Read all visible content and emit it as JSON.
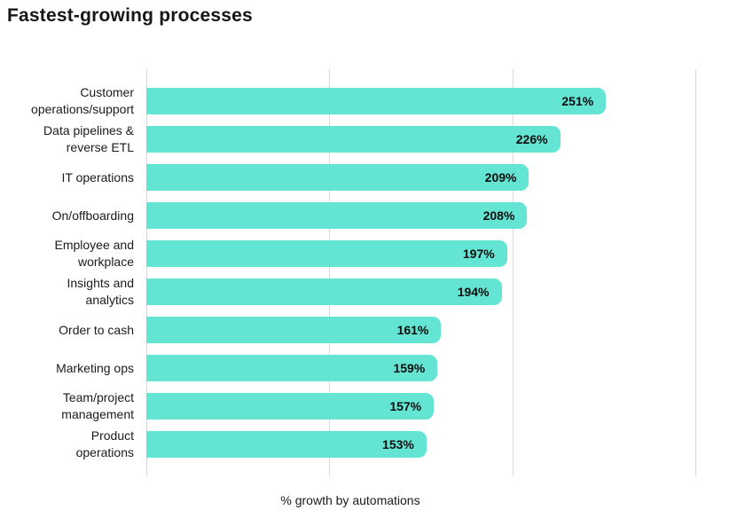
{
  "title": "Fastest-growing processes",
  "chart_data": {
    "type": "bar",
    "orientation": "horizontal",
    "title": "Fastest-growing processes",
    "xlabel": "% growth by automations",
    "ylabel": "",
    "xlim": [
      0,
      310
    ],
    "gridlines_x": [
      0,
      100,
      200,
      300
    ],
    "grid": "vertical-only",
    "legend": "none",
    "categories": [
      "Customer operations/support",
      "Data pipelines & reverse ETL",
      "IT operations",
      "On/offboarding",
      "Employee and workplace",
      "Insights and analytics",
      "Order to cash",
      "Marketing ops",
      "Team/project management",
      "Product operations"
    ],
    "category_label_lines": [
      [
        "Customer",
        "operations/support"
      ],
      [
        "Data pipelines &",
        "reverse ETL"
      ],
      [
        "IT operations"
      ],
      [
        "On/offboarding"
      ],
      [
        "Employee and",
        "workplace"
      ],
      [
        "Insights and",
        "analytics"
      ],
      [
        "Order to cash"
      ],
      [
        "Marketing ops"
      ],
      [
        "Team/project",
        "management"
      ],
      [
        "Product",
        "operations"
      ]
    ],
    "values": [
      251,
      226,
      209,
      208,
      197,
      194,
      161,
      159,
      157,
      153
    ],
    "value_labels": [
      "251%",
      "226%",
      "209%",
      "208%",
      "197%",
      "194%",
      "161%",
      "159%",
      "157%",
      "153%"
    ]
  },
  "colors": {
    "bar": "#64E5D3",
    "gridline": "#D8D8D8",
    "title_text": "#161616",
    "label_text": "#1B1B1B",
    "value_text": "#0D0D0D",
    "background": "#FFFFFF"
  }
}
